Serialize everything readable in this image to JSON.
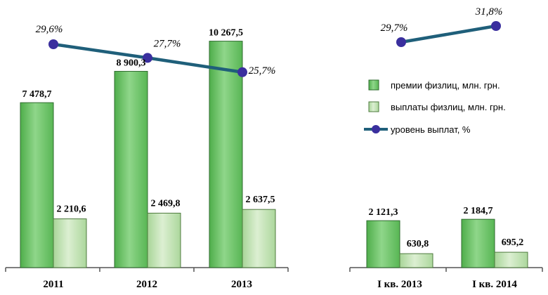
{
  "chart_data": {
    "type": "bar",
    "panels": [
      {
        "categories": [
          "2011",
          "2012",
          "2013"
        ],
        "series": [
          {
            "name": "премии физлиц, млн. грн.",
            "values": [
              7478.7,
              8900.3,
              10267.5
            ],
            "labels": [
              "7 478,7",
              "8 900,3",
              "10 267,5"
            ]
          },
          {
            "name": "выплаты физлиц, млн. грн.",
            "values": [
              2210.6,
              2469.8,
              2637.5
            ],
            "labels": [
              "2 210,6",
              "2 469,8",
              "2 637,5"
            ]
          }
        ],
        "line": {
          "name": "уровень выплат, %",
          "values": [
            29.6,
            27.7,
            25.7
          ],
          "labels": [
            "29,6%",
            "27,7%",
            "25,7%"
          ]
        }
      },
      {
        "categories": [
          "I кв. 2013",
          "I кв. 2014"
        ],
        "series": [
          {
            "name": "премии физлиц, млн. грн.",
            "values": [
              2121.3,
              2184.7
            ],
            "labels": [
              "2 121,3",
              "2 184,7"
            ]
          },
          {
            "name": "выплаты физлиц, млн. грн.",
            "values": [
              630.8,
              695.2
            ],
            "labels": [
              "630,8",
              "695,2"
            ]
          }
        ],
        "line": {
          "name": "уровень выплат, %",
          "values": [
            29.7,
            31.8
          ],
          "labels": [
            "29,7%",
            "31,8%"
          ]
        }
      }
    ],
    "legend": {
      "position": "right",
      "items": [
        "премии физлиц, млн. грн.",
        "выплаты физлиц, млн. грн.",
        "уровень выплат, %"
      ]
    },
    "grid": false
  },
  "colors": {
    "premium_fill": "#6ec46a",
    "premium_border": "#2f6b2f",
    "payout_fill": "#c5e4b4",
    "payout_border": "#4e7a3e",
    "line": "#1f5f7a",
    "marker": "#3a2f9e",
    "axis": "#555555"
  }
}
